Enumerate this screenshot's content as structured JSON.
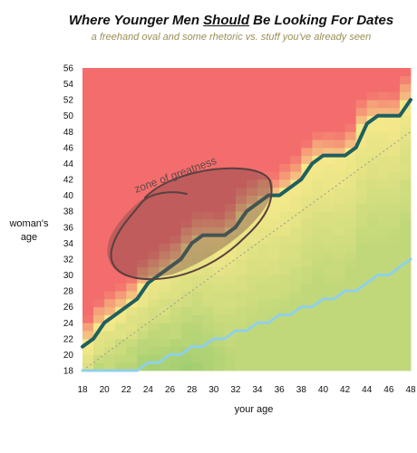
{
  "title": {
    "before": "Where Younger Men ",
    "underlined": "Should",
    "after": " Be Looking For Dates"
  },
  "subtitle": "a freehand oval and some rhetoric vs. stuff you've already seen",
  "chart_data": {
    "type": "heatmap",
    "xlabel": "your age",
    "ylabel_lines": [
      "woman's",
      "age"
    ],
    "xlim": [
      18,
      48
    ],
    "ylim": [
      18,
      56
    ],
    "x_ticks": [
      18,
      20,
      22,
      24,
      26,
      28,
      30,
      32,
      34,
      36,
      38,
      40,
      42,
      44,
      46,
      48
    ],
    "y_ticks": [
      18,
      20,
      22,
      24,
      26,
      28,
      30,
      32,
      34,
      36,
      38,
      40,
      42,
      44,
      46,
      48,
      50,
      52,
      54,
      56
    ],
    "colors": {
      "high": "#f46d6d",
      "mid": "#f6e98a",
      "low": "#5cb85c",
      "upper_line": "#1f5f5f",
      "lower_line": "#8fd0e8",
      "diagonal": "#999999",
      "oval": "#5a4040"
    },
    "series": [
      {
        "x": [
          18,
          19,
          20,
          21,
          22,
          23,
          24,
          25,
          26,
          27,
          28,
          29,
          30,
          31,
          32,
          33,
          34,
          35,
          36,
          37,
          38,
          39,
          40,
          41,
          42,
          43,
          44,
          45,
          46,
          47,
          48
        ],
        "y": [
          21,
          22,
          24,
          25,
          26,
          27,
          29,
          30,
          31,
          32,
          34,
          35,
          35,
          35,
          36,
          38,
          39,
          40,
          40,
          41,
          42,
          44,
          45,
          45,
          45,
          46,
          49,
          50,
          50,
          50,
          52
        ]
      },
      {
        "x": [
          18,
          19,
          20,
          21,
          22,
          23,
          24,
          25,
          26,
          27,
          28,
          29,
          30,
          31,
          32,
          33,
          34,
          35,
          36,
          37,
          38,
          39,
          40,
          41,
          42,
          43,
          44,
          45,
          46,
          47,
          48
        ],
        "y": [
          18,
          18,
          18,
          18,
          18,
          18,
          19,
          19,
          20,
          20,
          21,
          21,
          22,
          22,
          23,
          23,
          24,
          24,
          25,
          25,
          26,
          26,
          27,
          27,
          28,
          28,
          29,
          30,
          30,
          31,
          32
        ]
      }
    ],
    "annotation": "zone of greatness"
  }
}
